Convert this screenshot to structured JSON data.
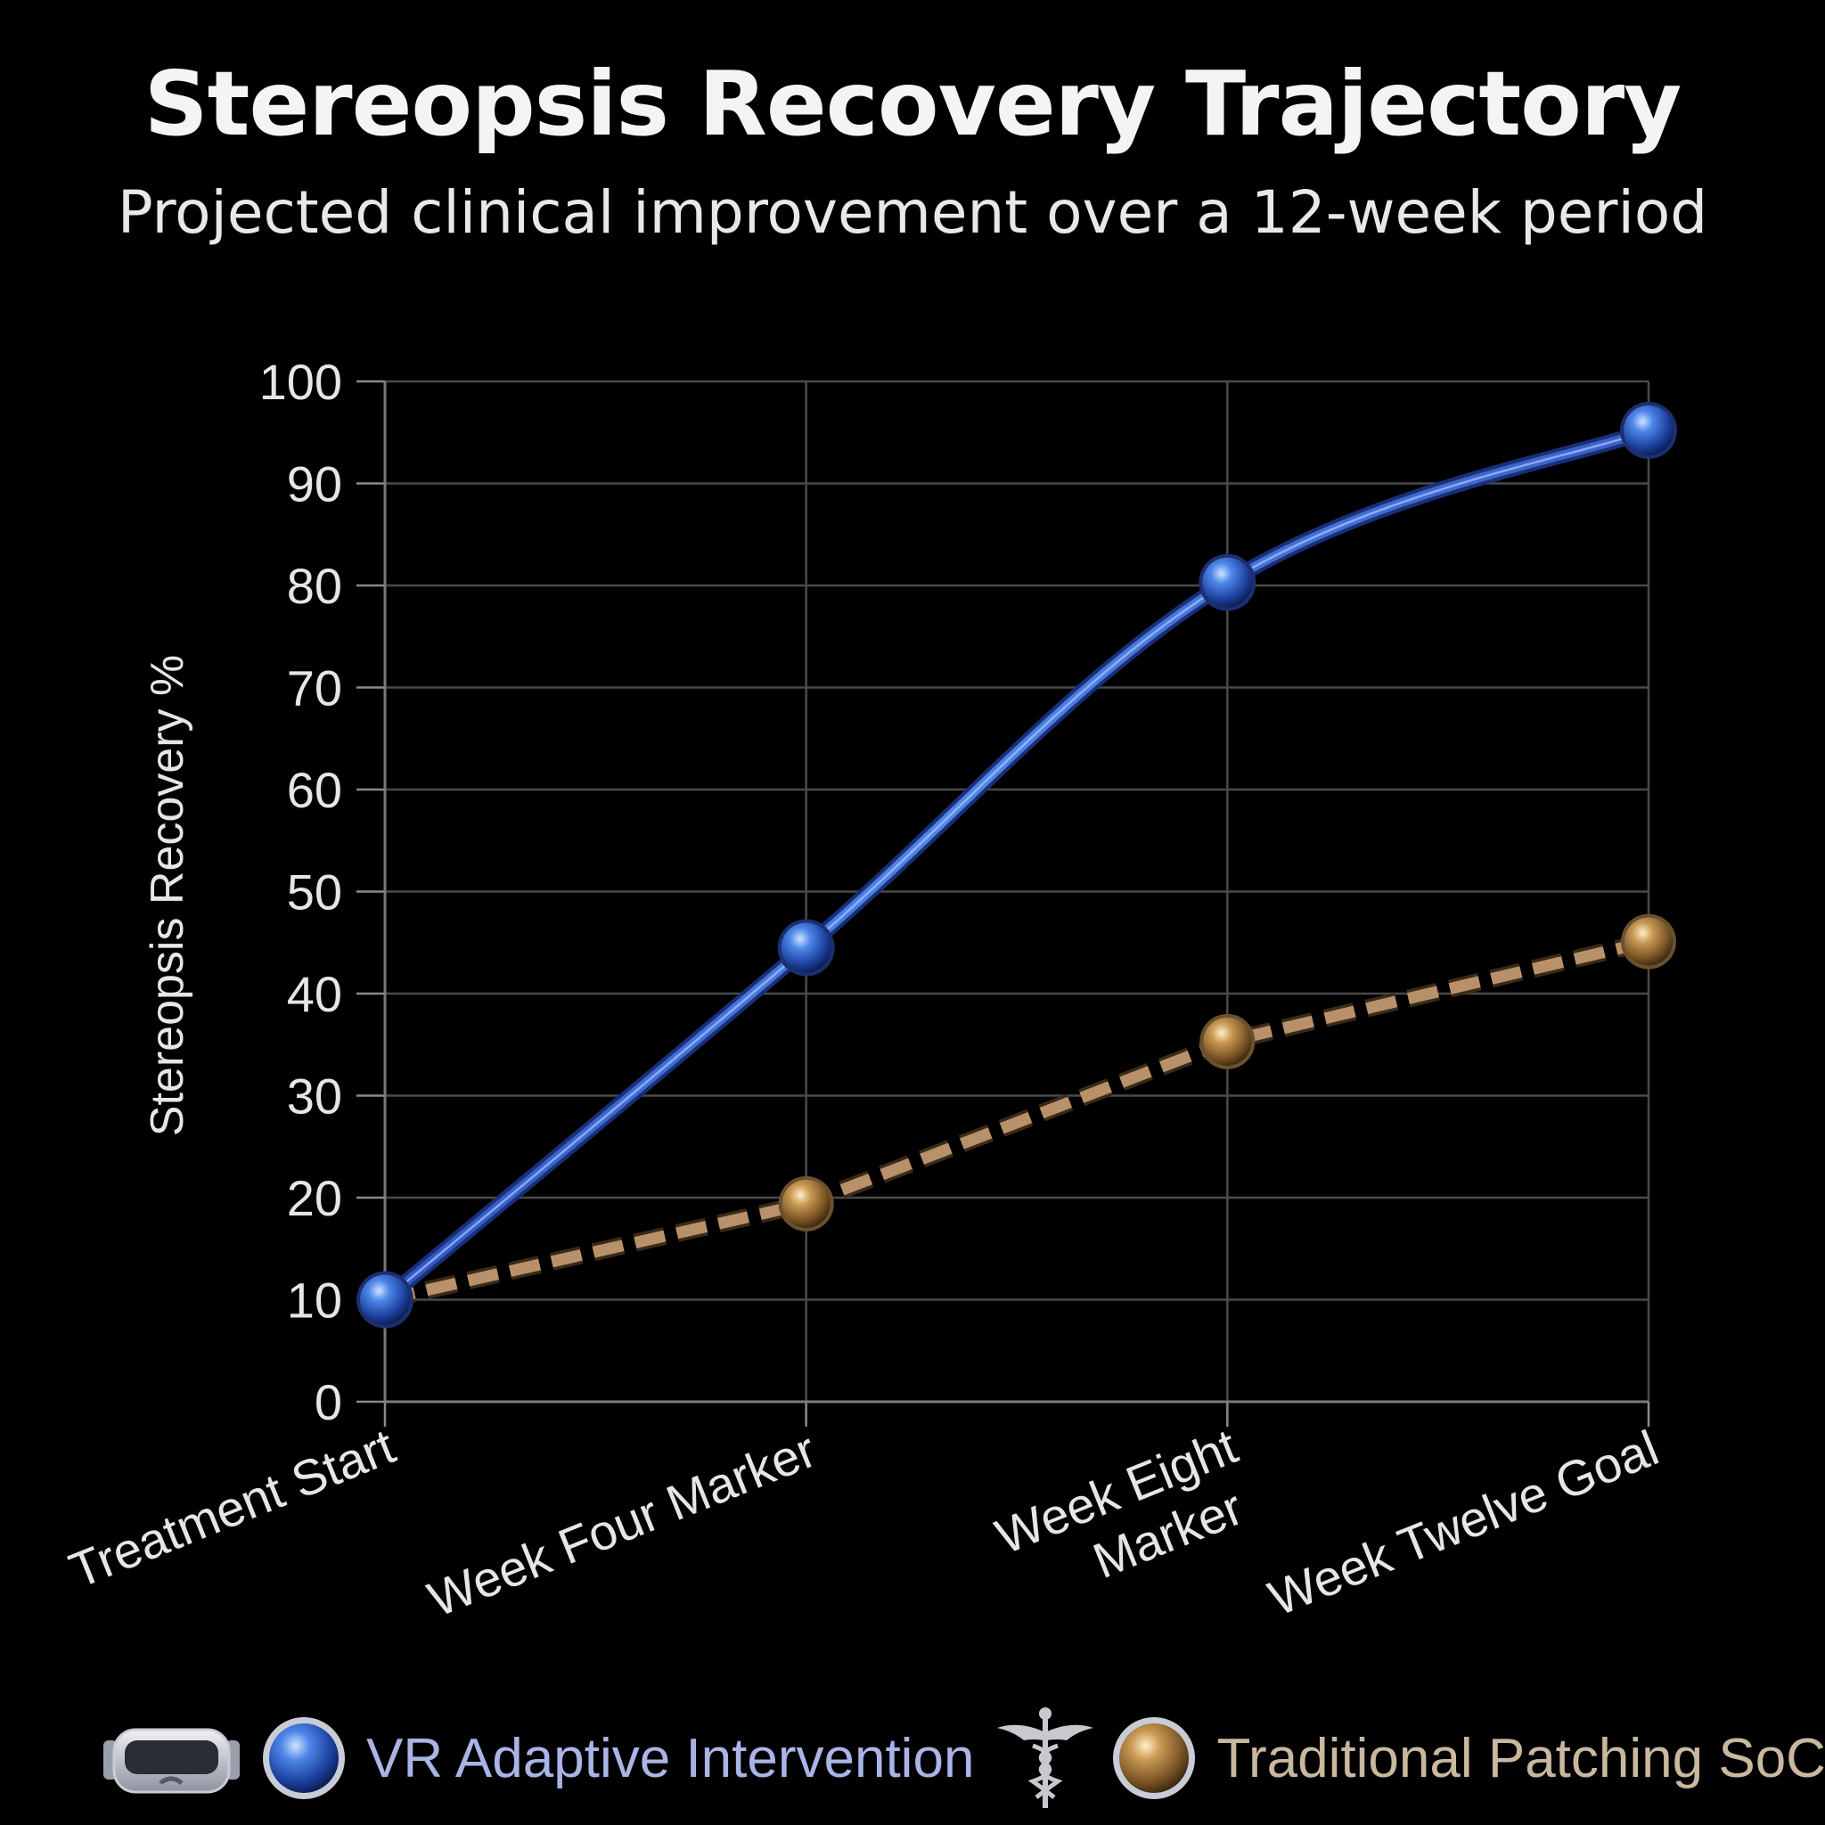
{
  "chart_data": {
    "type": "line",
    "title": "Stereopsis Recovery Trajectory",
    "subtitle": "Projected clinical improvement over a 12-week period",
    "ylabel": "Stereopsis Recovery %",
    "xlabel": "",
    "ylim": [
      0,
      100
    ],
    "yticks": [
      "0",
      "10",
      "20",
      "30",
      "40",
      "50",
      "60",
      "70",
      "80",
      "90",
      "100"
    ],
    "grid": true,
    "categories": [
      "Treatment Start",
      "Week Four Marker",
      "Week Eight Marker",
      "Week Twelve Goal"
    ],
    "series": [
      {
        "name": "VR Adaptive Intervention",
        "values": [
          10,
          44.5,
          80.3,
          95.2
        ],
        "line_style": "solid",
        "color": "#3a6fd8"
      },
      {
        "name": "Traditional Patching SoC",
        "values": [
          10,
          19.4,
          35.3,
          45.1
        ],
        "line_style": "dashed",
        "color": "#b8916a"
      }
    ],
    "legend_position": "bottom"
  },
  "legend": {
    "vr_icon": "vr-headset-icon",
    "soc_icon": "caduceus-icon"
  },
  "colors": {
    "background": "#000000",
    "grid": "#4a4a4a",
    "axis_text": "#e6e6e6",
    "vr_line": "#3a6fd8",
    "vr_marker": "#2f62c8",
    "soc_line": "#b8916a",
    "soc_marker": "#b48a4c"
  }
}
